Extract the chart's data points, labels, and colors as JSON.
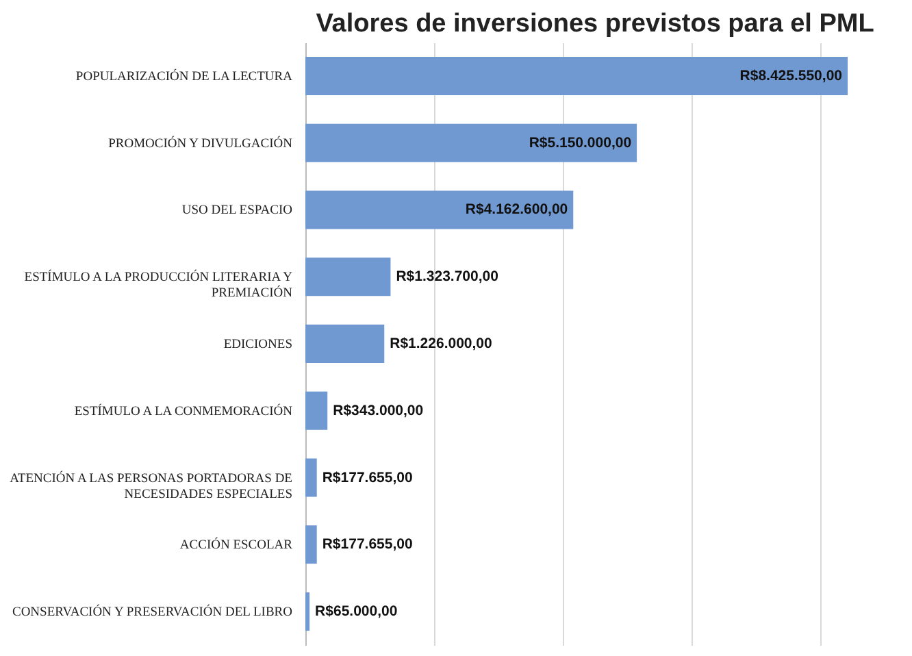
{
  "chart_data": {
    "type": "bar",
    "orientation": "horizontal",
    "title": "Valores de inversiones previstos para el PML",
    "categories": [
      "POPULARIZACIÓN DE LA LECTURA",
      "PROMOCIÓN Y DIVULGACIÓN",
      "USO DEL ESPACIO",
      "ESTÍMULO A LA PRODUCCIÓN LITERARIA Y PREMIACIÓN",
      "EDICIONES",
      "ESTÍMULO A LA CONMEMORACIÓN",
      "ATENCIÓN A LAS PERSONAS PORTADORAS DE NECESIDADES ESPECIALES",
      "ACCIÓN ESCOLAR",
      "CONSERVACIÓN Y PRESERVACIÓN DEL LIBRO"
    ],
    "values": [
      8425550,
      5150000,
      4162600,
      1323700,
      1226000,
      343000,
      177655,
      177655,
      65000
    ],
    "value_labels": [
      "R$8.425.550,00",
      "R$5.150.000,00",
      "R$4.162.600,00",
      "R$1.323.700,00",
      "R$1.226.000,00",
      "R$343.000,00",
      "R$177.655,00",
      "R$177.655,00",
      "R$65.000,00"
    ],
    "color": "#7199d1",
    "xticks": [
      {
        "value": 0,
        "label": null
      },
      {
        "value": 2000000,
        "label": null
      },
      {
        "value": 4000000,
        "label": null
      },
      {
        "value": 6000000,
        "label": null
      },
      {
        "value": 8000000,
        "label": null
      }
    ],
    "tick_labels": "y",
    "grid": "x"
  }
}
